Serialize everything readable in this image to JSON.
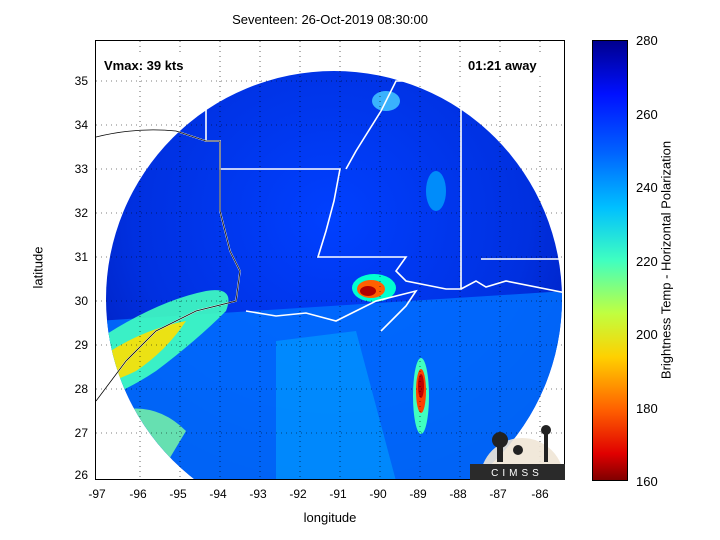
{
  "title": "Seventeen: 26-Oct-2019 08:30:00",
  "vmax_label": "Vmax: 39 kts",
  "away_label": "01:21 away",
  "logo_text": "CIMSS",
  "x_axis": {
    "label": "longitude",
    "ticks": [
      "-97",
      "-96",
      "-95",
      "-94",
      "-93",
      "-92",
      "-91",
      "-90",
      "-89",
      "-88",
      "-87",
      "-86"
    ]
  },
  "y_axis": {
    "label": "latitude",
    "ticks": [
      "35",
      "34",
      "33",
      "32",
      "31",
      "30",
      "29",
      "28",
      "27",
      "26"
    ]
  },
  "colorbar": {
    "label": "Brightness Temp - Horizontal Polarization",
    "ticks": [
      "280",
      "260",
      "240",
      "220",
      "200",
      "180",
      "160"
    ],
    "range": [
      160,
      280
    ]
  },
  "colors": {
    "cold": "#800000",
    "warm": "#00008f",
    "mid": "#00c0ff"
  }
}
